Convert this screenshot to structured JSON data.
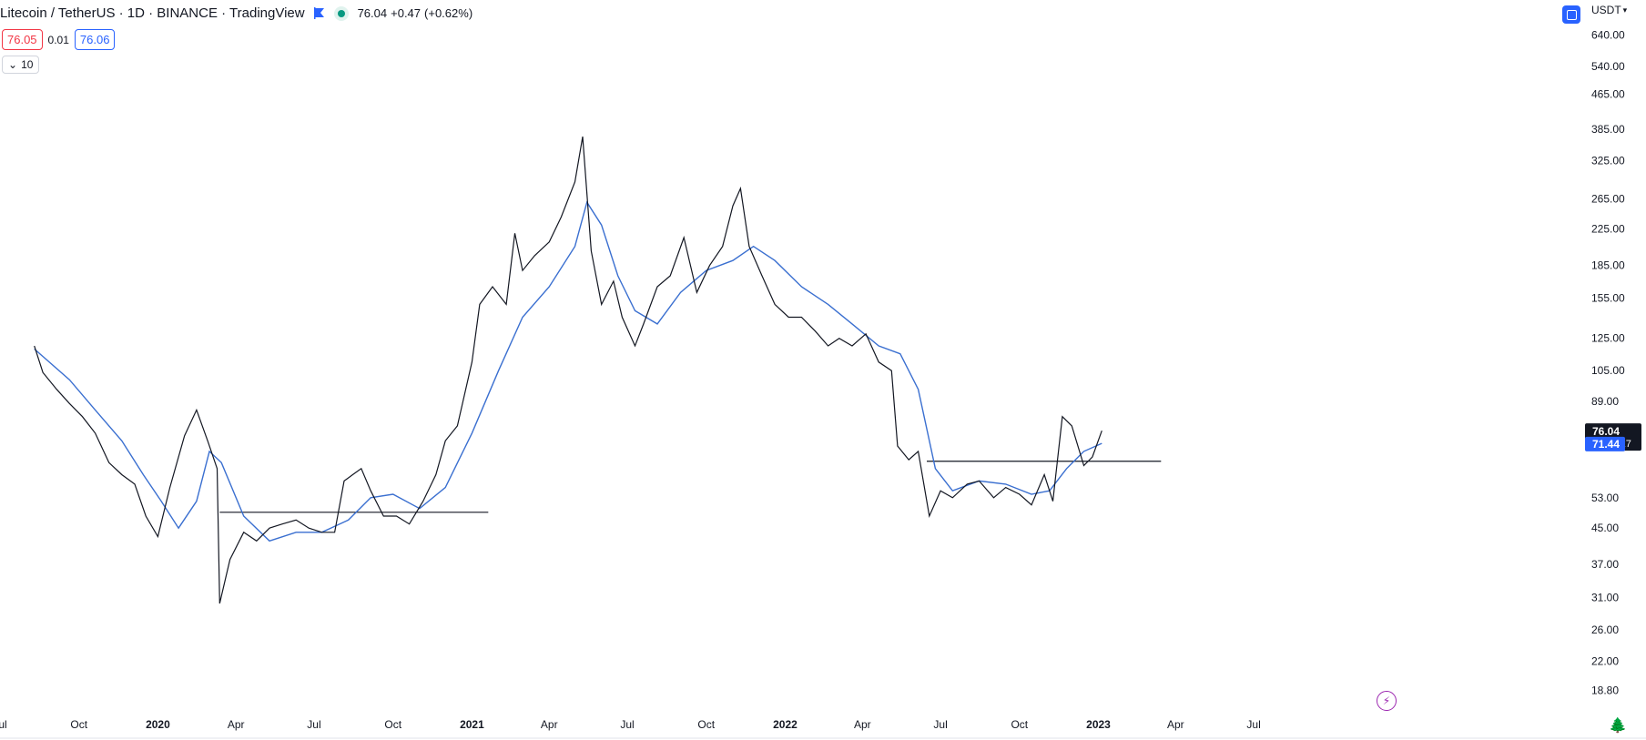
{
  "header": {
    "symbol_line": "Litecoin / TetherUS · 1D · BINANCE · TradingView",
    "last": "76.04",
    "change": "+0.47",
    "change_pct": "(+0.62%)",
    "sell_price": "76.05",
    "spread": "0.01",
    "buy_price": "76.06",
    "indicator_toggle": "10",
    "currency": "USDT"
  },
  "colors": {
    "price_line": "#131722",
    "ma_line": "#3a6fd0",
    "bg": "#ffffff",
    "label_dark": "#131722",
    "label_blue": "#2962ff"
  },
  "chart_data": {
    "type": "line",
    "title": "",
    "y_scale": "log",
    "ylim": [
      16.5,
      700
    ],
    "xlim": [
      "2019-07-01",
      "2024-07-20"
    ],
    "y_ticks": [
      "640.00",
      "540.00",
      "465.00",
      "385.00",
      "325.00",
      "265.00",
      "225.00",
      "185.00",
      "155.00",
      "125.00",
      "105.00",
      "89.00",
      "53.00",
      "45.00",
      "37.00",
      "31.00",
      "26.00",
      "22.00",
      "18.80"
    ],
    "x_ticks": [
      {
        "label": "Jul",
        "date": "2019-07-01",
        "bold": false
      },
      {
        "label": "Oct",
        "date": "2019-10-01",
        "bold": false
      },
      {
        "label": "2020",
        "date": "2020-01-01",
        "bold": true
      },
      {
        "label": "Apr",
        "date": "2020-04-01",
        "bold": false
      },
      {
        "label": "Jul",
        "date": "2020-07-01",
        "bold": false
      },
      {
        "label": "Oct",
        "date": "2020-10-01",
        "bold": false
      },
      {
        "label": "2021",
        "date": "2021-01-01",
        "bold": true
      },
      {
        "label": "Apr",
        "date": "2021-04-01",
        "bold": false
      },
      {
        "label": "Jul",
        "date": "2021-07-01",
        "bold": false
      },
      {
        "label": "Oct",
        "date": "2021-10-01",
        "bold": false
      },
      {
        "label": "2022",
        "date": "2022-01-01",
        "bold": true
      },
      {
        "label": "Apr",
        "date": "2022-04-01",
        "bold": false
      },
      {
        "label": "Jul",
        "date": "2022-07-01",
        "bold": false
      },
      {
        "label": "Oct",
        "date": "2022-10-01",
        "bold": false
      },
      {
        "label": "2023",
        "date": "2023-01-01",
        "bold": true
      },
      {
        "label": "Apr",
        "date": "2023-04-01",
        "bold": false
      },
      {
        "label": "Jul",
        "date": "2023-07-01",
        "bold": false
      }
    ],
    "series": [
      {
        "key": "price",
        "x": [
          "2019-08-10",
          "2019-08-20",
          "2019-09-05",
          "2019-09-20",
          "2019-10-05",
          "2019-10-20",
          "2019-11-05",
          "2019-11-20",
          "2019-12-05",
          "2019-12-18",
          "2020-01-01",
          "2020-01-15",
          "2020-02-01",
          "2020-02-15",
          "2020-02-28",
          "2020-03-10",
          "2020-03-13",
          "2020-03-25",
          "2020-04-10",
          "2020-04-25",
          "2020-05-10",
          "2020-05-25",
          "2020-06-10",
          "2020-06-25",
          "2020-07-10",
          "2020-07-25",
          "2020-08-05",
          "2020-08-15",
          "2020-08-25",
          "2020-09-05",
          "2020-09-20",
          "2020-10-05",
          "2020-10-20",
          "2020-11-05",
          "2020-11-20",
          "2020-12-01",
          "2020-12-15",
          "2021-01-01",
          "2021-01-10",
          "2021-01-25",
          "2021-02-10",
          "2021-02-20",
          "2021-03-01",
          "2021-03-15",
          "2021-04-01",
          "2021-04-15",
          "2021-05-01",
          "2021-05-10",
          "2021-05-20",
          "2021-06-01",
          "2021-06-15",
          "2021-06-25",
          "2021-07-10",
          "2021-07-20",
          "2021-08-05",
          "2021-08-20",
          "2021-09-05",
          "2021-09-20",
          "2021-10-05",
          "2021-10-20",
          "2021-11-01",
          "2021-11-10",
          "2021-11-20",
          "2021-12-05",
          "2021-12-20",
          "2022-01-05",
          "2022-01-20",
          "2022-02-05",
          "2022-02-20",
          "2022-03-05",
          "2022-03-20",
          "2022-04-05",
          "2022-04-20",
          "2022-05-05",
          "2022-05-12",
          "2022-05-25",
          "2022-06-05",
          "2022-06-18",
          "2022-07-01",
          "2022-07-15",
          "2022-08-01",
          "2022-08-15",
          "2022-09-01",
          "2022-09-15",
          "2022-10-01",
          "2022-10-15",
          "2022-10-30",
          "2022-11-09",
          "2022-11-20",
          "2022-12-01",
          "2022-12-15",
          "2022-12-25",
          "2023-01-05"
        ],
        "y": [
          120,
          104,
          95,
          88,
          82,
          75,
          64,
          60,
          57,
          48,
          43,
          56,
          74,
          85,
          72,
          62,
          30,
          38,
          44,
          42,
          45,
          46,
          47,
          45,
          44,
          44,
          58,
          60,
          62,
          55,
          48,
          48,
          46,
          52,
          60,
          72,
          78,
          110,
          150,
          165,
          150,
          220,
          180,
          195,
          210,
          240,
          290,
          370,
          200,
          150,
          170,
          140,
          120,
          135,
          165,
          175,
          215,
          160,
          185,
          205,
          255,
          280,
          205,
          175,
          150,
          140,
          140,
          130,
          120,
          125,
          120,
          128,
          110,
          105,
          70,
          65,
          68,
          48,
          55,
          53,
          57,
          58,
          53,
          56,
          54,
          51,
          60,
          52,
          82,
          78,
          63,
          66,
          76
        ]
      },
      {
        "key": "ma",
        "x": [
          "2019-08-10",
          "2019-09-20",
          "2019-10-20",
          "2019-11-20",
          "2019-12-15",
          "2020-01-05",
          "2020-01-25",
          "2020-02-15",
          "2020-03-01",
          "2020-03-15",
          "2020-04-10",
          "2020-05-10",
          "2020-06-10",
          "2020-07-10",
          "2020-08-10",
          "2020-09-05",
          "2020-10-01",
          "2020-11-01",
          "2020-12-01",
          "2021-01-01",
          "2021-02-01",
          "2021-03-01",
          "2021-04-01",
          "2021-05-01",
          "2021-05-15",
          "2021-06-01",
          "2021-06-20",
          "2021-07-10",
          "2021-08-05",
          "2021-09-01",
          "2021-10-01",
          "2021-11-01",
          "2021-11-25",
          "2021-12-20",
          "2022-01-20",
          "2022-02-20",
          "2022-03-20",
          "2022-04-20",
          "2022-05-15",
          "2022-06-05",
          "2022-06-25",
          "2022-07-15",
          "2022-08-15",
          "2022-09-15",
          "2022-10-15",
          "2022-11-05",
          "2022-11-25",
          "2022-12-15",
          "2023-01-05"
        ],
        "y": [
          118,
          100,
          85,
          72,
          60,
          52,
          45,
          52,
          68,
          64,
          48,
          42,
          44,
          44,
          47,
          53,
          54,
          50,
          56,
          75,
          105,
          140,
          165,
          205,
          260,
          230,
          175,
          145,
          135,
          160,
          180,
          190,
          205,
          190,
          165,
          150,
          135,
          120,
          115,
          95,
          62,
          55,
          58,
          57,
          54,
          55,
          62,
          68,
          71
        ]
      }
    ],
    "annotations": [
      {
        "type": "hline",
        "y": 49,
        "x": [
          "2020-03-13",
          "2021-01-20"
        ]
      },
      {
        "type": "hline",
        "y": 64.5,
        "x": [
          "2022-06-15",
          "2023-03-15"
        ]
      }
    ],
    "price_labels": {
      "last": "76.04",
      "countdown": "10:33:27",
      "ma": "71.44"
    }
  }
}
